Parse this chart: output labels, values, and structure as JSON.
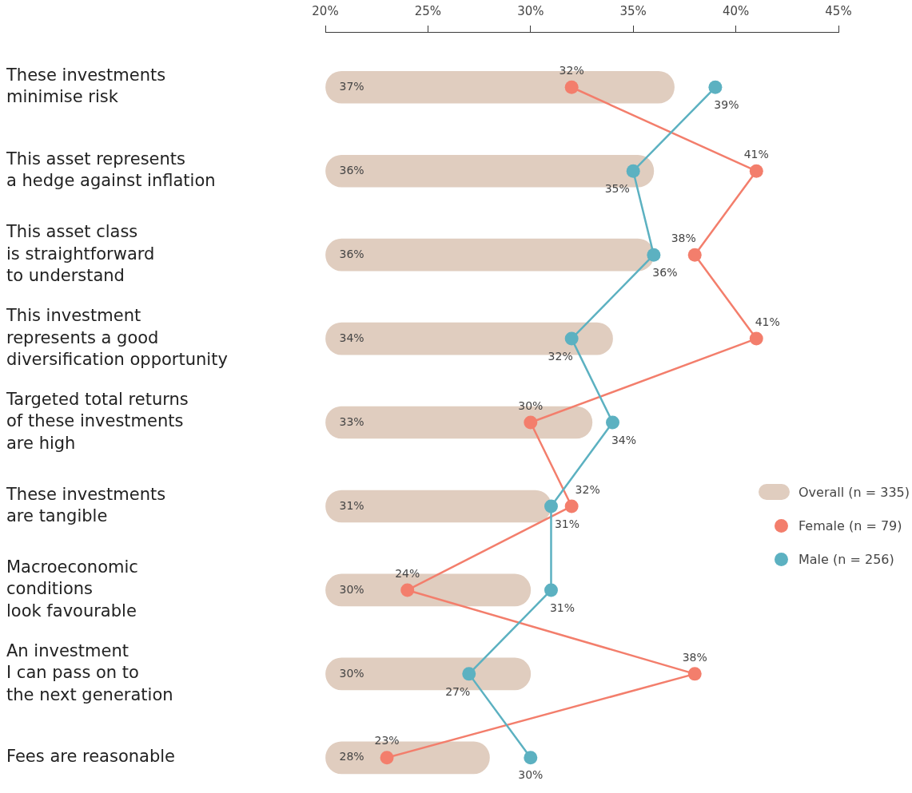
{
  "chart_data": {
    "type": "bar",
    "orientation": "horizontal",
    "categories": [
      "These investments\nminimise risk",
      "This asset represents\na hedge against inflation",
      "This asset class\nis straightforward\nto understand",
      "This investment\nrepresents a good\ndiversification opportunity",
      "Targeted total returns\nof these investments\nare high",
      "These investments\nare tangible",
      "Macroeconomic\nconditions\nlook favourable",
      "An investment\nI can pass on to\nthe next generation",
      "Fees are reasonable"
    ],
    "series": [
      {
        "name": "Overall (n = 335)",
        "color": "#e0cdbf",
        "values": [
          37,
          36,
          36,
          34,
          33,
          31,
          30,
          30,
          28
        ],
        "value_labels": [
          "37%",
          "36%",
          "36%",
          "34%",
          "33%",
          "31%",
          "30%",
          "30%",
          "28%"
        ]
      },
      {
        "name": "Female (n = 79)",
        "type": "line",
        "color": "#f37e6c",
        "values": [
          32,
          41,
          38,
          41,
          30,
          32,
          24,
          38,
          23
        ],
        "value_labels": [
          "32%",
          "41%",
          "38%",
          "41%",
          "30%",
          "32%",
          "24%",
          "38%",
          "23%"
        ]
      },
      {
        "name": "Male (n = 256)",
        "type": "line",
        "color": "#5cb1c1",
        "values": [
          39,
          35,
          36,
          32,
          34,
          31,
          31,
          27,
          30
        ],
        "value_labels": [
          "39%",
          "35%",
          "36%",
          "32%",
          "34%",
          "31%",
          "31%",
          "27%",
          "30%"
        ]
      }
    ],
    "xlim": [
      20,
      45
    ],
    "xticks": [
      {
        "value": 20,
        "label": "20%"
      },
      {
        "value": 25,
        "label": "25%"
      },
      {
        "value": 30,
        "label": "30%"
      },
      {
        "value": 35,
        "label": "35%"
      },
      {
        "value": 40,
        "label": "40%"
      },
      {
        "value": 45,
        "label": "45%"
      }
    ],
    "grid": false,
    "legend": "right",
    "marker": "circle"
  }
}
